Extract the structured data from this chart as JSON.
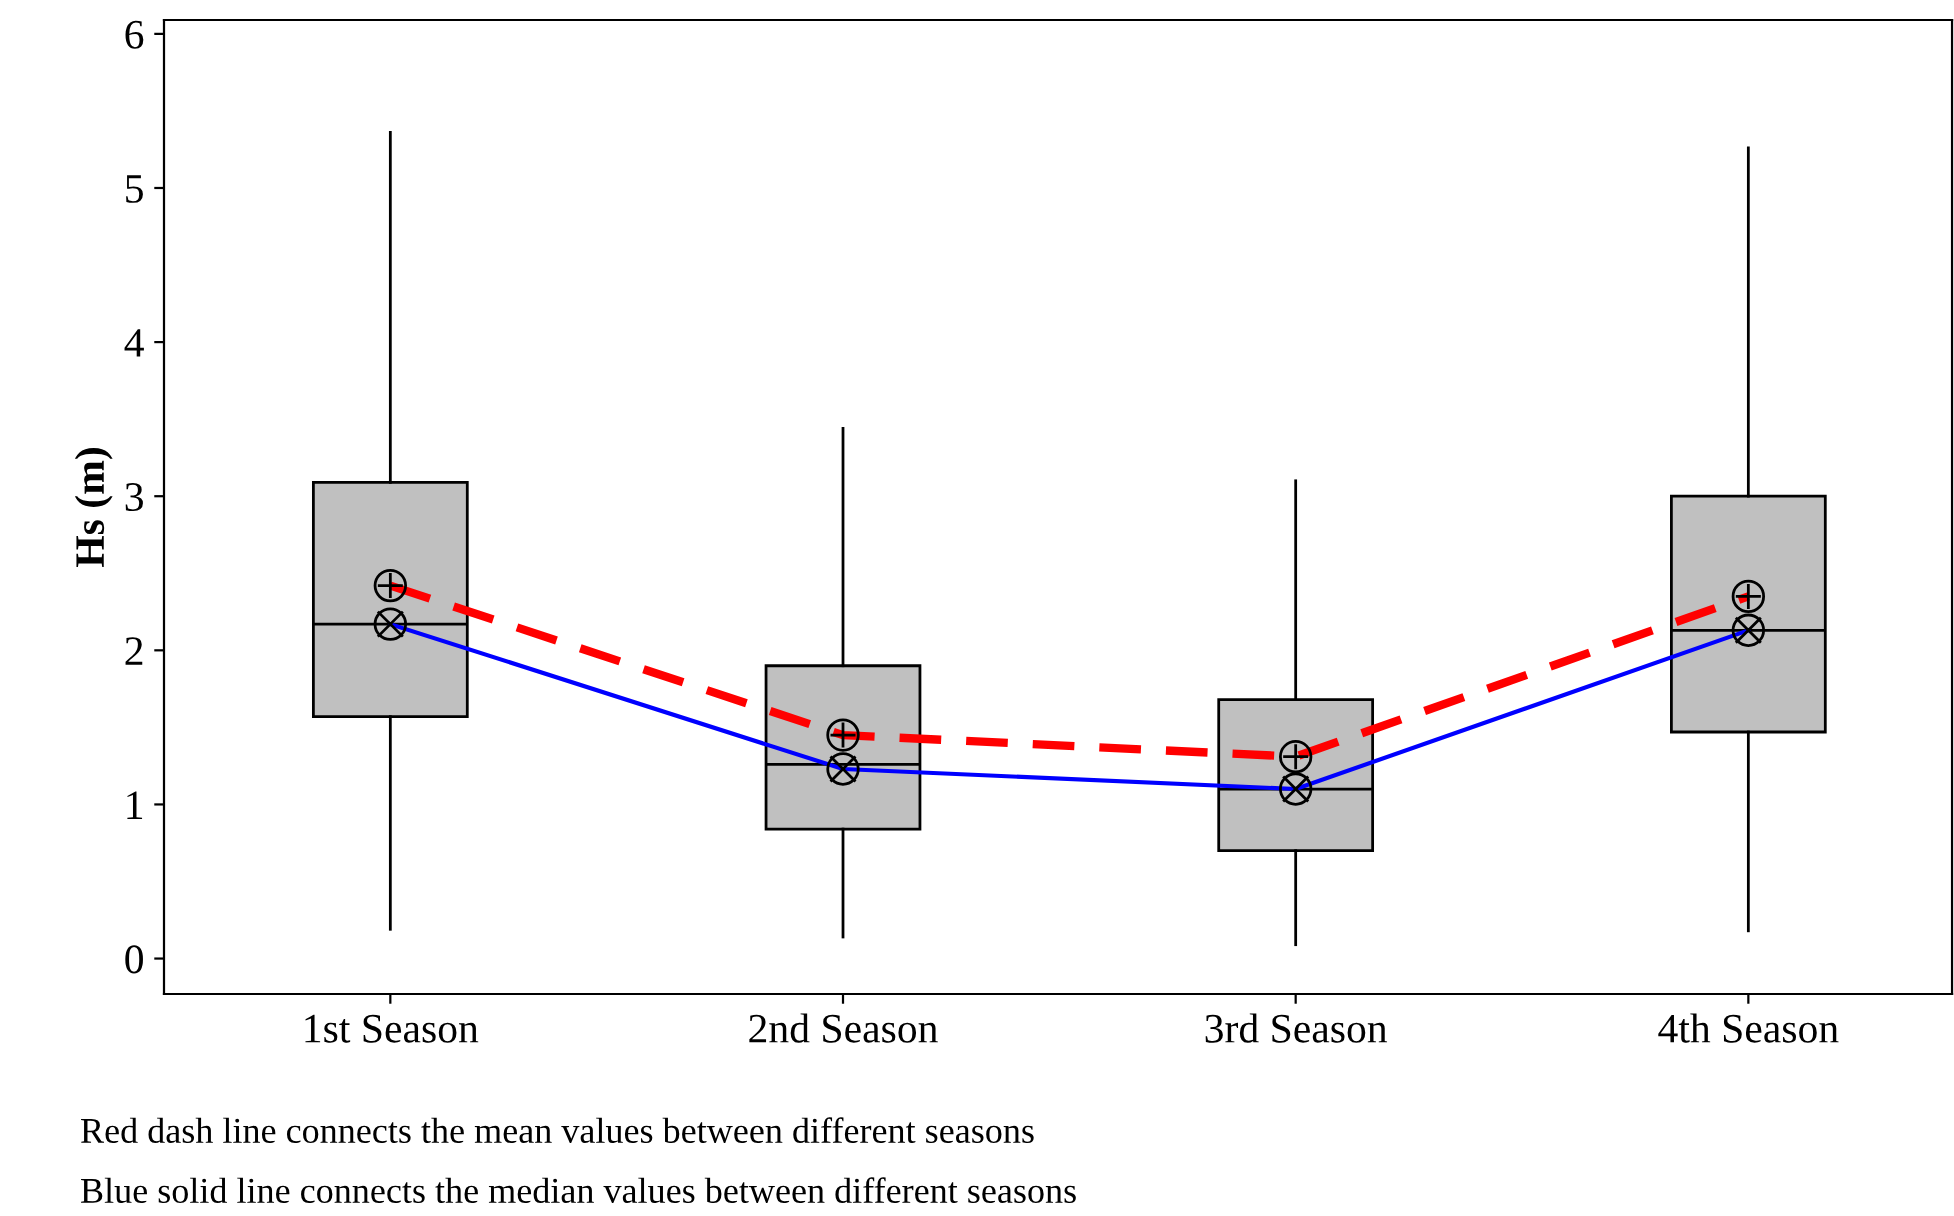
{
  "chart_data": {
    "type": "box",
    "ylabel": "Hs (m)",
    "categories": [
      "1st Season",
      "2nd Season",
      "3rd Season",
      "4th Season"
    ],
    "ylim": [
      -0.23,
      6.09
    ],
    "yticks": [
      0,
      1,
      2,
      3,
      4,
      5,
      6
    ],
    "grid": false,
    "legend": false,
    "color": "#c0c0c0",
    "boxes": [
      {
        "low": 0.19,
        "q1": 1.57,
        "median": 2.17,
        "q3": 3.09,
        "high": 5.36
      },
      {
        "low": 0.14,
        "q1": 0.84,
        "median": 1.26,
        "q3": 1.9,
        "high": 3.44
      },
      {
        "low": 0.09,
        "q1": 0.7,
        "median": 1.1,
        "q3": 1.68,
        "high": 3.1
      },
      {
        "low": 0.18,
        "q1": 1.47,
        "median": 2.13,
        "q3": 3.0,
        "high": 5.26
      }
    ],
    "series": [
      {
        "type": "line",
        "color": "#ff0000",
        "line_style": "dashed",
        "marker": "circle",
        "values": [
          2.42,
          1.45,
          1.31,
          2.35
        ]
      },
      {
        "type": "line",
        "color": "#0000ff",
        "line_style": "solid",
        "marker": "circle",
        "values": [
          2.17,
          1.23,
          1.1,
          2.13
        ]
      }
    ],
    "annotations": [
      "Red dash line connects the mean values between different seasons",
      "Blue solid line connects the median values between different seasons"
    ]
  }
}
